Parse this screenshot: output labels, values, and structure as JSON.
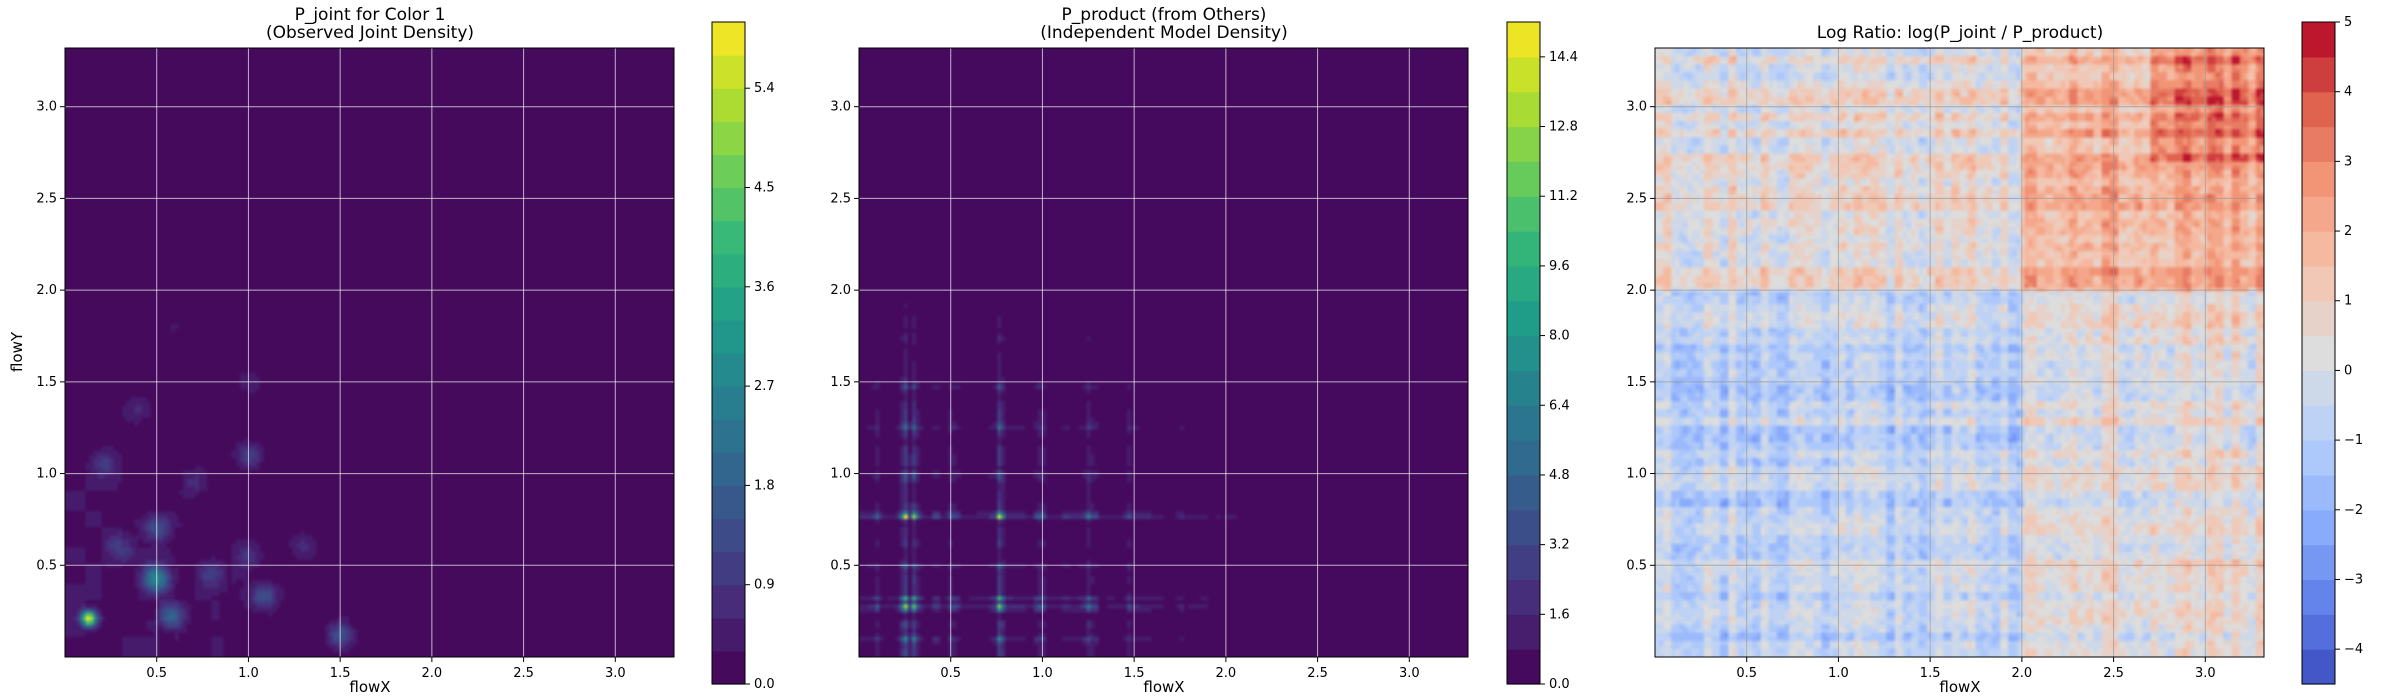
{
  "chart_data": [
    {
      "type": "heatmap",
      "title": "P_joint for Color 1",
      "subtitle": "(Observed Joint Density)",
      "xlabel": "flowX",
      "ylabel": "flowY",
      "xlim": [
        0.0,
        3.32
      ],
      "ylim": [
        0.0,
        3.32
      ],
      "xticks": [
        "0.5",
        "1.0",
        "1.5",
        "2.0",
        "2.5",
        "3.0"
      ],
      "yticks": [
        "0.5",
        "1.0",
        "1.5",
        "2.0",
        "2.5",
        "3.0"
      ],
      "grid": true,
      "colormap": "viridis",
      "colorbar": {
        "min": 0.0,
        "max": 6.0,
        "levels": 20,
        "ticks": [
          "0.0",
          "0.9",
          "1.8",
          "2.7",
          "3.6",
          "4.5",
          "5.4"
        ]
      },
      "peaks": [
        {
          "x": 0.13,
          "y": 0.21,
          "value": 5.8
        },
        {
          "x": 0.5,
          "y": 0.43,
          "value": 2.8
        },
        {
          "x": 0.58,
          "y": 0.22,
          "value": 1.6
        },
        {
          "x": 0.5,
          "y": 0.7,
          "value": 1.3
        },
        {
          "x": 1.08,
          "y": 0.33,
          "value": 1.4
        },
        {
          "x": 1.5,
          "y": 0.12,
          "value": 1.5
        },
        {
          "x": 1.0,
          "y": 1.1,
          "value": 1.1
        },
        {
          "x": 0.2,
          "y": 1.05,
          "value": 0.9
        },
        {
          "x": 0.8,
          "y": 0.45,
          "value": 1.0
        },
        {
          "x": 0.3,
          "y": 0.6,
          "value": 0.8
        },
        {
          "x": 1.0,
          "y": 0.55,
          "value": 0.8
        },
        {
          "x": 0.7,
          "y": 0.95,
          "value": 0.7
        },
        {
          "x": 1.3,
          "y": 0.6,
          "value": 0.6
        },
        {
          "x": 0.4,
          "y": 1.35,
          "value": 0.5
        },
        {
          "x": 1.0,
          "y": 1.5,
          "value": 0.5
        },
        {
          "x": 0.6,
          "y": 1.8,
          "value": 0.3
        }
      ]
    },
    {
      "type": "heatmap",
      "title": "P_product (from Others)",
      "subtitle": "(Independent Model Density)",
      "xlabel": "flowX",
      "ylabel": "",
      "xlim": [
        0.0,
        3.32
      ],
      "ylim": [
        0.0,
        3.32
      ],
      "xticks": [
        "0.5",
        "1.0",
        "1.5",
        "2.0",
        "2.5",
        "3.0"
      ],
      "yticks": [
        "0.5",
        "1.0",
        "1.5",
        "2.0",
        "2.5",
        "3.0"
      ],
      "grid": true,
      "colormap": "viridis",
      "colorbar": {
        "min": 0.0,
        "max": 15.2,
        "levels": 19,
        "ticks": [
          "0.0",
          "1.6",
          "3.2",
          "4.8",
          "6.4",
          "8.0",
          "9.6",
          "11.2",
          "12.8",
          "14.4"
        ]
      },
      "marginal_x_peaks": [
        {
          "x": 0.25,
          "w": 1.0
        },
        {
          "x": 0.3,
          "w": 0.8
        },
        {
          "x": 0.77,
          "w": 1.0
        },
        {
          "x": 0.5,
          "w": 0.25
        },
        {
          "x": 1.0,
          "w": 0.3
        },
        {
          "x": 1.25,
          "w": 0.25
        },
        {
          "x": 1.47,
          "w": 0.2
        },
        {
          "x": 1.75,
          "w": 0.1
        },
        {
          "x": 0.1,
          "w": 0.2
        }
      ],
      "marginal_y_peaks": [
        {
          "y": 0.77,
          "w": 1.0
        },
        {
          "y": 0.27,
          "w": 0.85
        },
        {
          "y": 0.32,
          "w": 0.6
        },
        {
          "y": 1.0,
          "w": 0.2
        },
        {
          "y": 1.25,
          "w": 0.2
        },
        {
          "y": 1.47,
          "w": 0.15
        },
        {
          "y": 1.75,
          "w": 0.08
        },
        {
          "y": 0.5,
          "w": 0.2
        },
        {
          "y": 0.1,
          "w": 0.3
        }
      ]
    },
    {
      "type": "heatmap",
      "title": "Log Ratio: log(P_joint / P_product)",
      "xlabel": "flowX",
      "ylabel": "",
      "xlim": [
        0.0,
        3.32
      ],
      "ylim": [
        0.0,
        3.32
      ],
      "xticks": [
        "0.5",
        "1.0",
        "1.5",
        "2.0",
        "2.5",
        "3.0"
      ],
      "yticks": [
        "0.5",
        "1.0",
        "1.5",
        "2.0",
        "2.5",
        "3.0"
      ],
      "grid": true,
      "colormap": "coolwarm",
      "colorbar": {
        "min": -4.5,
        "max": 5.0,
        "levels": 19,
        "ticks": [
          "−4",
          "−3",
          "−2",
          "−1",
          "0",
          "1",
          "2",
          "3",
          "4",
          "5"
        ]
      },
      "regions": [
        {
          "x_range": [
            2.0,
            3.32
          ],
          "y_range": [
            2.0,
            3.32
          ],
          "mean": 1.9
        },
        {
          "x_range": [
            0.0,
            2.0
          ],
          "y_range": [
            2.0,
            3.32
          ],
          "mean": 0.4
        },
        {
          "x_range": [
            2.0,
            3.32
          ],
          "y_range": [
            0.0,
            2.0
          ],
          "mean": 0.3
        },
        {
          "x_range": [
            0.0,
            2.0
          ],
          "y_range": [
            0.0,
            2.0
          ],
          "mean": -0.7
        }
      ]
    }
  ]
}
